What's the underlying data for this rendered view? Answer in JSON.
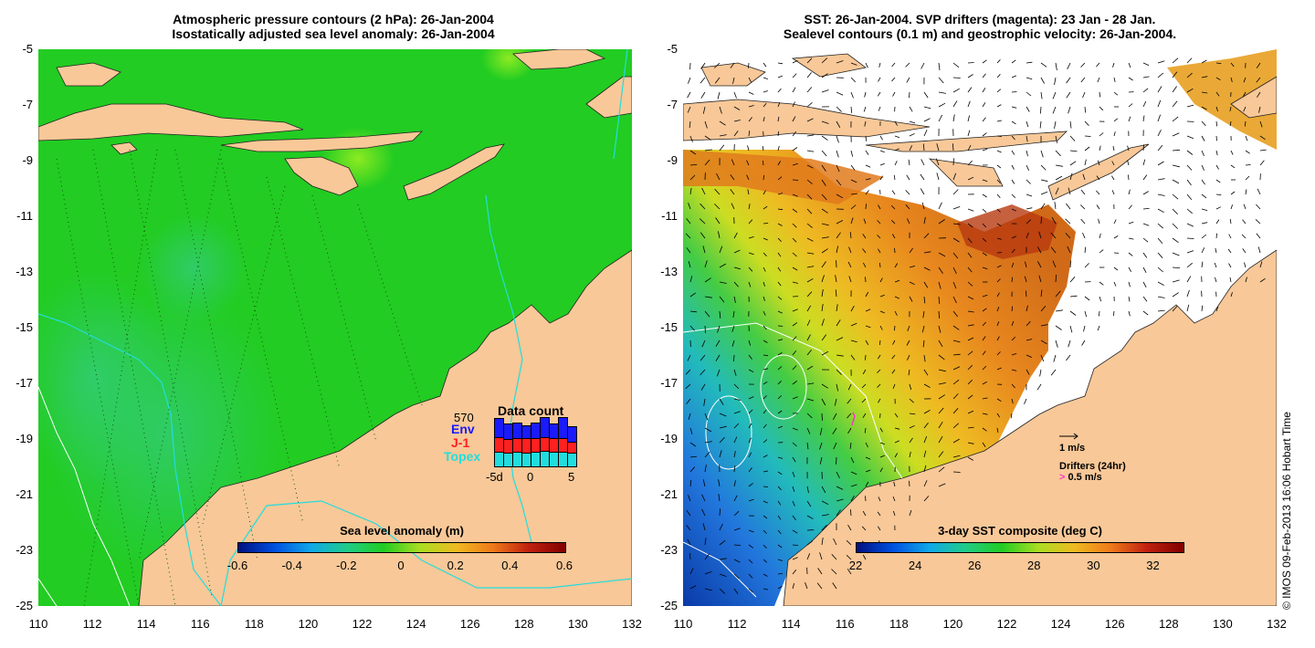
{
  "left": {
    "title_line1": "Atmospheric pressure contours (2 hPa): 26-Jan-2004",
    "title_line2": "Isostatically adjusted sea level anomaly: 26-Jan-2004",
    "colorbar_title": "Sea level anomaly (m)",
    "colorbar_ticks": [
      "-0.6",
      "-0.4",
      "-0.2",
      "0",
      "0.2",
      "0.4",
      "0.6"
    ],
    "datacount": {
      "title": "Data count",
      "max": "570",
      "legend": [
        {
          "label": "Env",
          "color": "#1a1aff"
        },
        {
          "label": "J-1",
          "color": "#ff2020"
        },
        {
          "label": "Topex",
          "color": "#22dddd"
        }
      ],
      "xticks": [
        "-5d",
        "0",
        "5"
      ],
      "bars": [
        {
          "topex": 0.3,
          "j1": 0.32,
          "env": 0.38
        },
        {
          "topex": 0.28,
          "j1": 0.3,
          "env": 0.3
        },
        {
          "topex": 0.3,
          "j1": 0.3,
          "env": 0.3
        },
        {
          "topex": 0.28,
          "j1": 0.32,
          "env": 0.25
        },
        {
          "topex": 0.3,
          "j1": 0.3,
          "env": 0.3
        },
        {
          "topex": 0.32,
          "j1": 0.3,
          "env": 0.4
        },
        {
          "topex": 0.3,
          "j1": 0.3,
          "env": 0.28
        },
        {
          "topex": 0.3,
          "j1": 0.3,
          "env": 0.42
        },
        {
          "topex": 0.28,
          "j1": 0.24,
          "env": 0.3
        }
      ]
    }
  },
  "right": {
    "title_line1": "SST: 26-Jan-2004. SVP drifters (magenta): 23 Jan - 28 Jan.",
    "title_line2": "Sealevel contours (0.1 m) and geostrophic velocity: 26-Jan-2004.",
    "colorbar_title": "3-day SST composite (deg C)",
    "colorbar_ticks": [
      "22",
      "24",
      "26",
      "28",
      "30",
      "32"
    ],
    "velocity_scale": "1 m/s",
    "drifters_label": "Drifters (24hr)",
    "drifter_speed": "> 0.5 m/s"
  },
  "axes": {
    "lat_ticks": [
      "-5",
      "-7",
      "-9",
      "-11",
      "-13",
      "-15",
      "-17",
      "-19",
      "-21",
      "-23",
      "-25"
    ],
    "lon_ticks": [
      "110",
      "112",
      "114",
      "116",
      "118",
      "120",
      "122",
      "124",
      "126",
      "128",
      "130",
      "132"
    ]
  },
  "copyright": "© IMOS 09-Feb-2013 16:06 Hobart Time",
  "colors": {
    "land": "#f8c898",
    "ocean_green": "#22cc22",
    "sst_orange": "#ee9920"
  }
}
